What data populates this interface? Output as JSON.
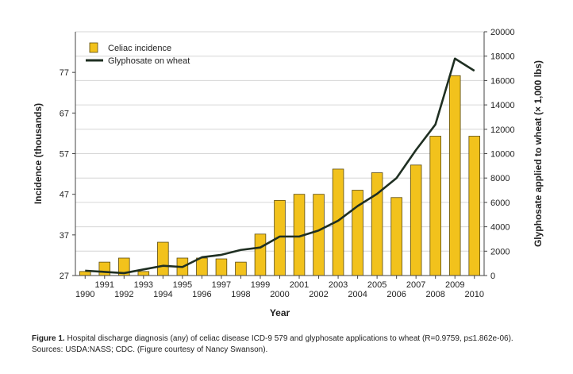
{
  "chart_data": {
    "type": "bar",
    "x_label": "Year",
    "y_label": "Incidence (thousands)",
    "y2_label": "Glyphosate applied to wheat (× 1,000 lbs)",
    "ylim": [
      27,
      87
    ],
    "y_ticks": [
      27,
      37,
      47,
      57,
      67,
      77
    ],
    "y2lim": [
      0,
      20000
    ],
    "y2_ticks": [
      0,
      2000,
      4000,
      6000,
      8000,
      10000,
      12000,
      14000,
      16000,
      18000,
      20000
    ],
    "grid": true,
    "legend_position": "top-left",
    "categories": [
      "1990",
      "1991",
      "1992",
      "1993",
      "1994",
      "1995",
      "1996",
      "1997",
      "1998",
      "1999",
      "2000",
      "2001",
      "2002",
      "2003",
      "2004",
      "2005",
      "2006",
      "2007",
      "2008",
      "2009",
      "2010"
    ],
    "series": [
      {
        "name": "Celiac incidence",
        "type": "bar",
        "axis": "left",
        "color": "#f2c21c",
        "values": [
          28,
          30.3,
          31.3,
          28,
          35.2,
          31.3,
          31.3,
          31.1,
          30.3,
          37.2,
          45.5,
          47,
          47,
          53.2,
          48,
          52.3,
          46.2,
          54.2,
          61.3,
          76.2,
          61.3
        ]
      },
      {
        "name": "Glyphosate on wheat",
        "type": "line",
        "axis": "right",
        "color": "#1f2f22",
        "values": [
          400,
          300,
          200,
          500,
          800,
          700,
          1500,
          1700,
          2100,
          2300,
          3200,
          3200,
          3700,
          4500,
          5700,
          6700,
          8000,
          10300,
          12400,
          17800,
          16800
        ]
      }
    ]
  },
  "caption": {
    "label": "Figure 1.",
    "text": "Hospital discharge diagnosis (any) of celiac disease ICD-9 579 and glyphosate applications to wheat (R=0.9759, p≤1.862e-06).",
    "sources": "Sources: USDA:NASS; CDC. (Figure courtesy of Nancy Swanson)."
  }
}
